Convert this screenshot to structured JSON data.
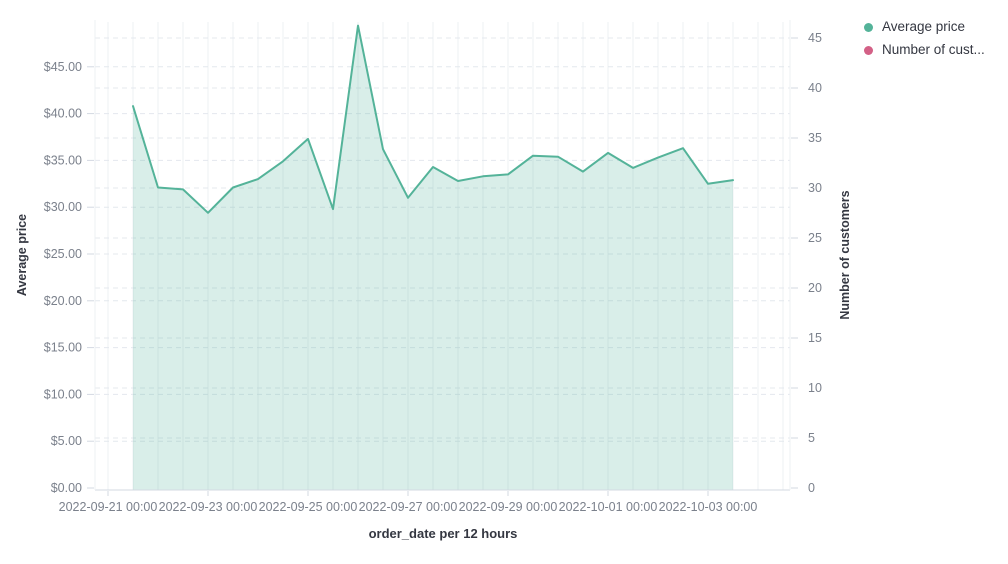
{
  "chart_data": {
    "type": "area",
    "title": "",
    "xlabel": "order_date per 12 hours",
    "ylabel_left": "Average price",
    "ylabel_right": "Number of customers",
    "x": [
      "2022-09-21 12:00",
      "2022-09-22 00:00",
      "2022-09-22 12:00",
      "2022-09-23 00:00",
      "2022-09-23 12:00",
      "2022-09-24 00:00",
      "2022-09-24 12:00",
      "2022-09-25 00:00",
      "2022-09-25 12:00",
      "2022-09-26 00:00",
      "2022-09-26 12:00",
      "2022-09-27 00:00",
      "2022-09-27 12:00",
      "2022-09-28 00:00",
      "2022-09-28 12:00",
      "2022-09-29 00:00",
      "2022-09-29 12:00",
      "2022-09-30 00:00",
      "2022-09-30 12:00",
      "2022-10-01 00:00",
      "2022-10-01 12:00",
      "2022-10-02 00:00",
      "2022-10-02 12:00",
      "2022-10-03 00:00",
      "2022-10-03 12:00"
    ],
    "series": [
      {
        "name": "Average price",
        "axis": "left",
        "color": "#54B399",
        "values": [
          40.8,
          32.1,
          31.9,
          29.4,
          32.1,
          33.0,
          34.9,
          37.3,
          29.8,
          49.4,
          36.2,
          31.0,
          34.3,
          32.8,
          33.3,
          33.5,
          35.5,
          35.4,
          33.8,
          35.8,
          34.2,
          35.3,
          36.3,
          32.5,
          32.9
        ]
      },
      {
        "name": "Number of customers",
        "axis": "right",
        "color": "#D36086",
        "values": [],
        "visible": false
      }
    ],
    "x_tick_labels": [
      "2022-09-21 00:00",
      "2022-09-23 00:00",
      "2022-09-25 00:00",
      "2022-09-27 00:00",
      "2022-09-29 00:00",
      "2022-10-01 00:00",
      "2022-10-03 00:00"
    ],
    "y_left_ticks": [
      "$0.00",
      "$5.00",
      "$10.00",
      "$15.00",
      "$20.00",
      "$25.00",
      "$30.00",
      "$35.00",
      "$40.00",
      "$45.00"
    ],
    "y_right_ticks": [
      "0",
      "5",
      "10",
      "15",
      "20",
      "25",
      "30",
      "35",
      "40",
      "45"
    ],
    "ylim_left": [
      0,
      50
    ],
    "ylim_right": [
      0,
      48
    ],
    "grid": true,
    "legend_position": "top-right"
  },
  "legend": {
    "items": [
      {
        "label": "Average price",
        "color": "#54B399"
      },
      {
        "label": "Number of cust...",
        "color": "#D36086"
      }
    ]
  },
  "colors": {
    "accent_green": "#54B399",
    "accent_pink": "#D36086",
    "area_fill": "rgba(84,179,153,0.22)",
    "grid_vertical": "#edf0f3",
    "grid_dashed": "#e4e8ee",
    "axis_line": "#d3d9e2",
    "tick_label": "#7b818c",
    "axis_title": "#343741"
  }
}
